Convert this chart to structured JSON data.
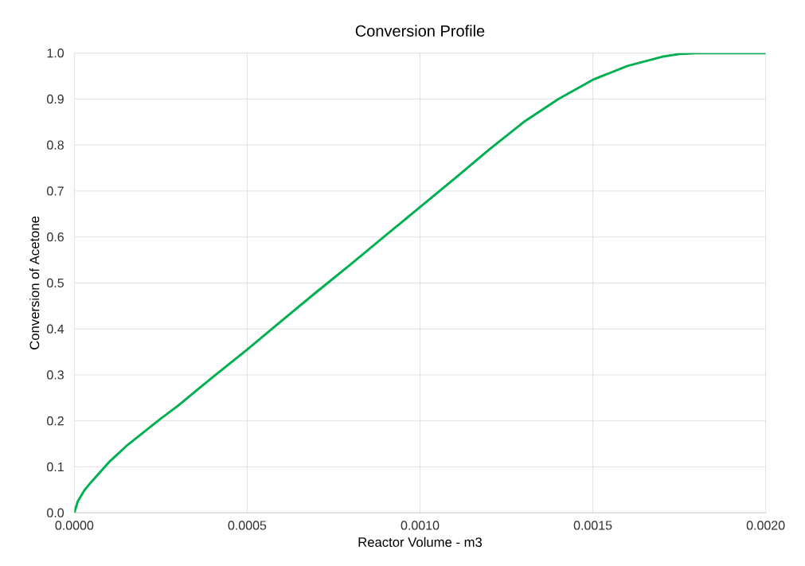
{
  "chart_data": {
    "type": "line",
    "title": "Conversion Profile",
    "xlabel": "Reactor Volume - m3",
    "ylabel": "Conversion of Acetone",
    "x": [
      0,
      1e-05,
      3e-05,
      5e-05,
      0.0001,
      0.00015,
      0.0002,
      0.00025,
      0.0003,
      0.0004,
      0.0005,
      0.0006,
      0.0007,
      0.0008,
      0.0009,
      0.001,
      0.0011,
      0.0012,
      0.0013,
      0.0014,
      0.0015,
      0.0016,
      0.0017,
      0.00175,
      0.0018,
      0.002
    ],
    "series": [
      {
        "color": "#00b050",
        "values": [
          0,
          0.025,
          0.05,
          0.068,
          0.11,
          0.145,
          0.175,
          0.205,
          0.233,
          0.295,
          0.355,
          0.418,
          0.48,
          0.541,
          0.603,
          0.665,
          0.727,
          0.79,
          0.85,
          0.9,
          0.942,
          0.972,
          0.992,
          0.998,
          1.0,
          1.0
        ]
      }
    ],
    "xlim": [
      0,
      0.002
    ],
    "ylim": [
      0,
      1
    ],
    "xticks": [
      {
        "value": 0,
        "label": "0.0000"
      },
      {
        "value": 0.0005,
        "label": "0.0005"
      },
      {
        "value": 0.001,
        "label": "0.0010"
      },
      {
        "value": 0.0015,
        "label": "0.0015"
      },
      {
        "value": 0.002,
        "label": "0.0020"
      }
    ],
    "yticks": [
      {
        "value": 0,
        "label": "0.0"
      },
      {
        "value": 0.1,
        "label": "0.1"
      },
      {
        "value": 0.2,
        "label": "0.2"
      },
      {
        "value": 0.3,
        "label": "0.3"
      },
      {
        "value": 0.4,
        "label": "0.4"
      },
      {
        "value": 0.5,
        "label": "0.5"
      },
      {
        "value": 0.6,
        "label": "0.6"
      },
      {
        "value": 0.7,
        "label": "0.7"
      },
      {
        "value": 0.8,
        "label": "0.8"
      },
      {
        "value": 0.9,
        "label": "0.9"
      },
      {
        "value": 1,
        "label": "1.0"
      }
    ],
    "grid": true,
    "marker": "none",
    "line_style": "solid"
  }
}
